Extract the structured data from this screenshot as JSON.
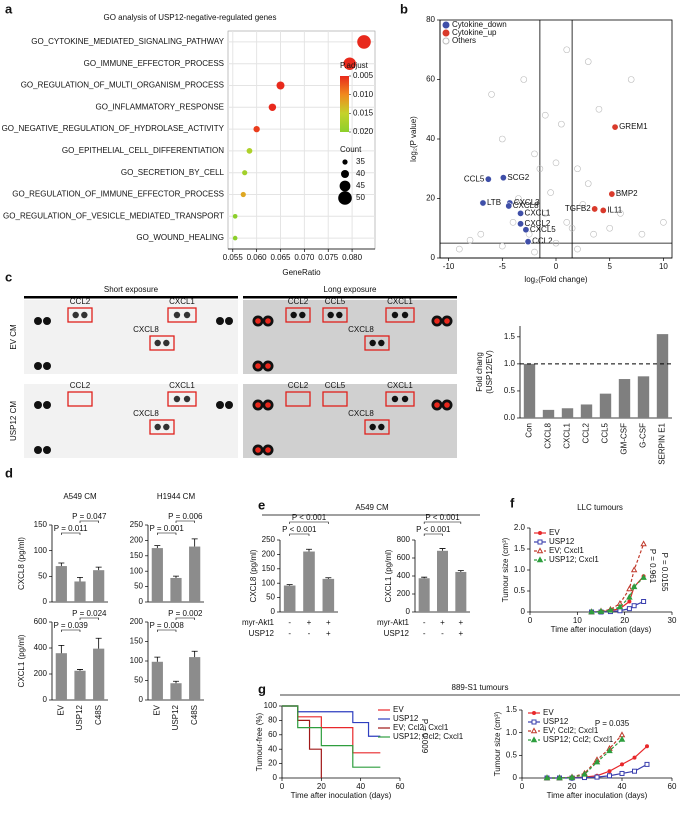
{
  "panel_labels": [
    "a",
    "b",
    "c",
    "d",
    "e",
    "f",
    "g"
  ],
  "blots": {
    "exposures": [
      "Short exposure",
      "Long exposure"
    ],
    "rows": [
      "EV CM",
      "USP12 CM"
    ],
    "spot_labels": [
      [
        "CCL2",
        "CXCL1",
        "CXCL8"
      ],
      [
        "CCL2",
        "CCL5",
        "CXCL1",
        "CXCL8"
      ],
      [
        "CCL2",
        "CXCL1",
        "CXCL8"
      ],
      [
        "CCL2",
        "CCL5",
        "CXCL1",
        "CXCL8"
      ]
    ]
  },
  "chart_data": [
    {
      "type": "dot",
      "title": "GO analysis of USP12-negative-regulated genes",
      "categories": [
        "GO_CYTOKINE_MEDIATED_SIGNALING_PATHWAY",
        "GO_IMMUNE_EFFECTOR_PROCESS",
        "GO_REGULATION_OF_MULTI_ORGANISM_PROCESS",
        "GO_INFLAMMATORY_RESPONSE",
        "GO_NEGATIVE_REGULATION_OF_HYDROLASE_ACTIVITY",
        "GO_EPITHELIAL_CELL_DIFFERENTIATION",
        "GO_SECRETION_BY_CELL",
        "GO_REGULATION_OF_IMMUNE_EFFECTOR_PROCESS",
        "GO_REGULATION_OF_VESICLE_MEDIATED_TRANSPORT",
        "GO_WOUND_HEALING"
      ],
      "values": [
        0.0825,
        0.0795,
        0.065,
        0.0633,
        0.06,
        0.0585,
        0.0575,
        0.0572,
        0.0555,
        0.0555
      ],
      "counts": [
        50,
        48,
        40,
        39,
        37,
        36,
        35,
        35,
        34,
        34
      ],
      "p_adjust": [
        0.001,
        0.002,
        0.003,
        0.004,
        0.006,
        0.017,
        0.018,
        0.012,
        0.02,
        0.02
      ],
      "xlabel": "GeneRatio",
      "xlim": [
        0.054,
        0.0848
      ],
      "xticks": [
        {
          "value": 0.055,
          "label": "0.055"
        },
        {
          "value": 0.06,
          "label": "0.060"
        },
        {
          "value": 0.065,
          "label": "0.065"
        },
        {
          "value": 0.07,
          "label": "0.070"
        },
        {
          "value": 0.075,
          "label": "0.075"
        },
        {
          "value": 0.08,
          "label": "0.080"
        }
      ],
      "grid": true,
      "color_title": "P.adjust",
      "colors": [
        "#e8291c",
        "#f08a1d",
        "#c4d22a",
        "#8ccf2b"
      ],
      "color_ticks": [
        0.005,
        {
          "value": 0.01,
          "label": "0.010"
        },
        0.015,
        {
          "value": 0.02,
          "label": "0.020"
        }
      ],
      "size_title": "Count",
      "size_ticks": [
        35,
        40,
        45,
        50
      ]
    },
    {
      "type": "scatter",
      "xlabel": "log₂(Fold change)",
      "ylabel": "log₂(P value)",
      "xlim": [
        -10.8,
        10.8
      ],
      "xticks": [
        -10,
        -5,
        0,
        5,
        10
      ],
      "ylim": [
        0,
        80
      ],
      "yticks": [
        0,
        20,
        40,
        60,
        80
      ],
      "vlines": [
        -1.5,
        1.5
      ],
      "hlines": [
        5
      ],
      "series": [
        {
          "name": "Cytokine_down",
          "color": "#3f4fa8",
          "labels": [
            "CCL5",
            "SCG2",
            "LTB",
            "CXCL3",
            "CXCL8",
            "CXCL1",
            "CXCL2",
            "CXCL5",
            "CCL2"
          ],
          "x": [
            -6.3,
            -4.9,
            -6.8,
            -4.3,
            -4.4,
            -3.3,
            -3.3,
            -2.8,
            -2.6
          ],
          "values": [
            26.5,
            27,
            18.5,
            18.5,
            17.5,
            15,
            11.5,
            9.5,
            5.5
          ]
        },
        {
          "name": "Cytokine_up",
          "color": "#d93a2b",
          "labels": [
            "TGFB2",
            "IL11",
            "BMP2",
            "GREM1"
          ],
          "x": [
            3.6,
            4.4,
            5.2,
            5.5
          ],
          "values": [
            16.5,
            16,
            21.5,
            44
          ]
        },
        {
          "name": "Others",
          "color": "#bbbbbb",
          "hollow": true,
          "x": [
            -9,
            -7,
            -6,
            -5,
            -4,
            -3.5,
            -3,
            -2.5,
            -2,
            -1.5,
            -1,
            -0.5,
            0,
            0.5,
            1,
            1.5,
            2,
            2.5,
            3,
            3.5,
            4,
            5,
            6,
            7,
            8,
            -8,
            -2,
            2,
            1,
            -1,
            0,
            3,
            10,
            -5
          ],
          "values": [
            3,
            8,
            55,
            40,
            12,
            20,
            60,
            8,
            35,
            30,
            15,
            22,
            5,
            45,
            12,
            10,
            30,
            18,
            25,
            8,
            50,
            10,
            15,
            60,
            8,
            6,
            2,
            3,
            70,
            48,
            32,
            66,
            12,
            4
          ]
        }
      ]
    },
    {
      "type": "bar",
      "ylabel": [
        "Fold chang",
        "(USP12/EV)"
      ],
      "categories": [
        "Con",
        "CXCL8",
        "CXCL1",
        "CCL2",
        "CCL5",
        "GM-CSF",
        "G-CSF",
        "SERPIN E1"
      ],
      "values": [
        1.0,
        0.15,
        0.18,
        0.25,
        0.45,
        0.72,
        0.77,
        1.55
      ],
      "color": "#7f7f7f",
      "ylim": [
        0,
        1.7
      ],
      "yticks": [
        {
          "value": 0,
          "label": "0.0"
        },
        0.5,
        {
          "value": 1,
          "label": "1.0"
        },
        1.5
      ],
      "hlines": [
        1
      ]
    },
    {
      "type": "bar",
      "title": "A549 CM",
      "ylabel": "CXCL8 (pg/ml)",
      "values": [
        70,
        40,
        62
      ],
      "errors": [
        6,
        8,
        6
      ],
      "color": "#8c8c8c",
      "ylim": [
        0,
        150
      ],
      "yticks": [
        0,
        50,
        100,
        150
      ],
      "annotations": [
        "P = 0.011",
        "P = 0.047"
      ]
    },
    {
      "type": "bar",
      "title": "H1944 CM",
      "values": [
        175,
        78,
        180
      ],
      "errors": [
        8,
        6,
        25
      ],
      "color": "#8c8c8c",
      "ylim": [
        0,
        250
      ],
      "yticks": [
        0,
        50,
        100,
        150,
        200,
        250
      ],
      "annotations": [
        "P = 0.001",
        "P = 0.006"
      ]
    },
    {
      "type": "bar",
      "ylabel": "CXCL1 (pg/ml)",
      "categories": [
        "EV",
        "USP12",
        "C48S"
      ],
      "values": [
        360,
        225,
        395
      ],
      "errors": [
        60,
        10,
        80
      ],
      "color": "#8c8c8c",
      "ylim": [
        0,
        600
      ],
      "yticks": [
        0,
        200,
        400,
        600
      ],
      "annotations": [
        "P = 0.039",
        "P = 0.024"
      ]
    },
    {
      "type": "bar",
      "categories": [
        "EV",
        "USP12",
        "C48S"
      ],
      "values": [
        98,
        43,
        110
      ],
      "errors": [
        12,
        5,
        15
      ],
      "color": "#8c8c8c",
      "ylim": [
        0,
        200
      ],
      "yticks": [
        0,
        50,
        100,
        150,
        200
      ],
      "annotations": [
        "P = 0.008",
        "P = 0.002"
      ]
    },
    {
      "type": "bar",
      "title": "A549 CM",
      "ylabel": "CXCL8 (pg/ml)",
      "values": [
        92,
        210,
        115
      ],
      "errors": [
        3,
        8,
        4
      ],
      "color": "#8c8c8c",
      "ylim": [
        0,
        250
      ],
      "yticks": [
        0,
        50,
        100,
        150,
        200,
        250
      ],
      "annotations": [
        "P < 0.001",
        "P < 0.001"
      ],
      "conditions": [
        {
          "name": "myr-Akt1",
          "values": [
            "-",
            "+",
            "+"
          ]
        },
        {
          "name": "USP12",
          "values": [
            "-",
            "-",
            "+"
          ]
        }
      ]
    },
    {
      "type": "bar",
      "ylabel": "CXCL1 (pg/ml)",
      "values": [
        375,
        680,
        445
      ],
      "errors": [
        12,
        25,
        15
      ],
      "color": "#8c8c8c",
      "ylim": [
        0,
        800
      ],
      "yticks": [
        0,
        200,
        400,
        600,
        800
      ],
      "annotations": [
        "P < 0.001",
        "P < 0.001"
      ],
      "conditions": [
        {
          "name": "myr-Akt1",
          "values": [
            "-",
            "+",
            "+"
          ]
        },
        {
          "name": "USP12",
          "values": [
            "-",
            "-",
            "+"
          ]
        }
      ]
    },
    {
      "type": "line",
      "title": "LLC tumours",
      "xlabel": "Time after inoculation (days)",
      "ylabel": "Tumour size (cm³)",
      "x": [
        13,
        15,
        17,
        19,
        21,
        22,
        24
      ],
      "xlim": [
        0,
        30
      ],
      "xticks": [
        0,
        10,
        20,
        30
      ],
      "ylim": [
        0,
        2
      ],
      "yticks": [
        0,
        0.5,
        {
          "value": 1,
          "label": "1.0"
        },
        1.5,
        {
          "value": 2,
          "label": "2.0"
        }
      ],
      "series": [
        {
          "name": "EV",
          "color": "#e8282b",
          "marker": "circle",
          "values": [
            0,
            0.01,
            0.03,
            0.08,
            0.25,
            0.6,
            0.85
          ]
        },
        {
          "name": "USP12",
          "color": "#3a3fae",
          "marker": "square",
          "values": [
            0,
            0,
            0.01,
            0.03,
            0.08,
            0.15,
            0.25
          ]
        },
        {
          "name": "EV; Cxcl1",
          "color": "#c0392b",
          "marker": "triangle-open",
          "dash": true,
          "values": [
            0,
            0.02,
            0.06,
            0.2,
            0.55,
            1.0,
            1.62
          ]
        },
        {
          "name": "USP12; Cxcl1",
          "color": "#2e9e3e",
          "marker": "triangle",
          "dash": true,
          "values": [
            0,
            0.01,
            0.04,
            0.12,
            0.35,
            0.6,
            0.82
          ]
        }
      ],
      "annotations": [
        "P = 0.961",
        "P = 0.0155"
      ]
    },
    {
      "type": "step",
      "title": "889-S1 tumours",
      "xlabel": "Time after inoculation (days)",
      "ylabel": "Tumour-free (%)",
      "xlim": [
        0,
        60
      ],
      "xticks": [
        0,
        20,
        40,
        60
      ],
      "ylim": [
        0,
        100
      ],
      "yticks": [
        0,
        20,
        40,
        60,
        80,
        100
      ],
      "series": [
        {
          "name": "EV",
          "color": "#e8282b",
          "x": [
            0,
            8,
            20,
            36,
            50
          ],
          "values": [
            100,
            85,
            70,
            35,
            35
          ]
        },
        {
          "name": "USP12",
          "color": "#2f3fc0",
          "x": [
            0,
            8,
            36,
            44,
            50
          ],
          "values": [
            100,
            92,
            77,
            58,
            58
          ]
        },
        {
          "name": "EV; Ccl2; Cxcl1",
          "color": "#a01818",
          "x": [
            0,
            8,
            14,
            20
          ],
          "values": [
            100,
            80,
            40,
            0
          ]
        },
        {
          "name": "USP12; Ccl2; Cxcl1",
          "color": "#2e9e3e",
          "x": [
            0,
            8,
            20,
            36,
            50
          ],
          "values": [
            100,
            70,
            45,
            15,
            15
          ]
        }
      ],
      "annotations": [
        "P = 0.009"
      ]
    },
    {
      "type": "line",
      "xlabel": "Time after inoculation (days)",
      "ylabel": "Tumour size (cm³)",
      "x": [
        10,
        15,
        20,
        25,
        30,
        35,
        40,
        45,
        50
      ],
      "xlim": [
        0,
        60
      ],
      "xticks": [
        0,
        20,
        40,
        60
      ],
      "ylim": [
        0,
        1.5
      ],
      "yticks": [
        0,
        0.5,
        {
          "value": 1,
          "label": "1.0"
        },
        1.5
      ],
      "series": [
        {
          "name": "EV",
          "color": "#e8282b",
          "marker": "circle",
          "values": [
            0,
            0,
            0.01,
            0.02,
            0.05,
            0.15,
            0.3,
            0.45,
            0.7
          ]
        },
        {
          "name": "USP12",
          "color": "#3a3fae",
          "marker": "square",
          "values": [
            0,
            0,
            0,
            0.01,
            0.02,
            0.05,
            0.1,
            0.15,
            0.3
          ]
        },
        {
          "name": "EV; Ccl2; Cxcl1",
          "color": "#c0392b",
          "marker": "triangle-open",
          "dash": true,
          "values": [
            0,
            0,
            0.02,
            0.1,
            0.4,
            0.65,
            0.95,
            null,
            null
          ]
        },
        {
          "name": "USP12; Ccl2; Cxcl1",
          "color": "#2e9e3e",
          "marker": "triangle",
          "dash": true,
          "values": [
            0,
            0,
            0.01,
            0.08,
            0.35,
            0.6,
            0.85,
            null,
            null
          ]
        }
      ],
      "annotations": [
        "P = 0.035"
      ]
    }
  ]
}
